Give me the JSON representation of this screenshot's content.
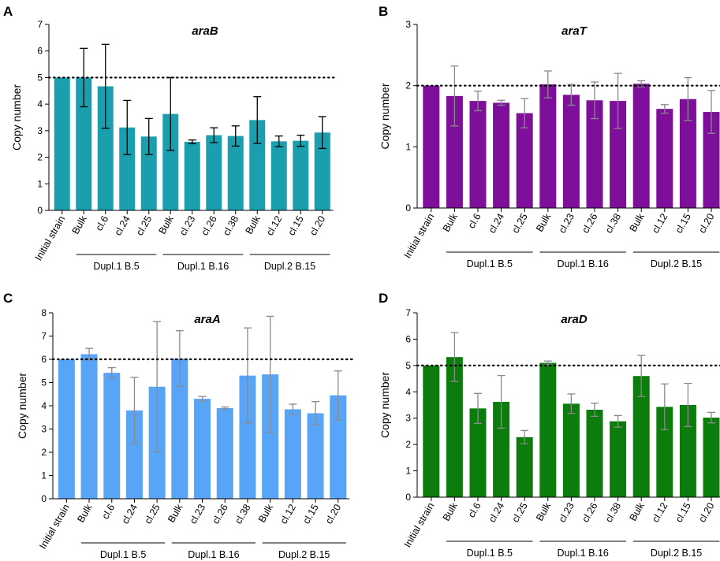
{
  "chart_data": [
    {
      "panel": "A",
      "type": "bar",
      "title": "araB",
      "ylabel": "Copy number",
      "ylim": [
        0,
        7
      ],
      "yticks": [
        "0",
        "1",
        "2",
        "3",
        "4",
        "5",
        "6",
        "7"
      ],
      "reference_line": 5,
      "color": "#1b9fae",
      "error_color": "#000000",
      "categories": [
        "Initial strain",
        "Bulk",
        "cl.6",
        "cl.24",
        "cl.25",
        "Bulk",
        "cl.23",
        "cl.26",
        "cl.38",
        "Bulk",
        "cl.12",
        "cl.15",
        "cl.20"
      ],
      "values": [
        5.0,
        5.0,
        4.67,
        3.12,
        2.78,
        3.63,
        2.58,
        2.83,
        2.8,
        3.4,
        2.6,
        2.62,
        2.93
      ],
      "errors": [
        0,
        1.1,
        1.58,
        1.02,
        0.68,
        1.37,
        0.07,
        0.28,
        0.38,
        0.88,
        0.2,
        0.21,
        0.6
      ],
      "groups": [
        {
          "label": "Dupl.1 B.5",
          "start": 1,
          "end": 4
        },
        {
          "label": "Dupl.1 B.16",
          "start": 5,
          "end": 8
        },
        {
          "label": "Dupl.2 B.15",
          "start": 9,
          "end": 12
        }
      ]
    },
    {
      "panel": "B",
      "type": "bar",
      "title": "araT",
      "ylabel": "Copy number",
      "ylim": [
        0,
        3
      ],
      "yticks": [
        "0",
        "1",
        "2",
        "3"
      ],
      "reference_line": 2,
      "color": "#7d0f9a",
      "error_color": "#8a8a8a",
      "categories": [
        "Initial strain",
        "Bulk",
        "cl.6",
        "cl.24",
        "cl.25",
        "Bulk",
        "cl.23",
        "cl.26",
        "cl.38",
        "Bulk",
        "cl.12",
        "cl.15",
        "cl.20"
      ],
      "values": [
        2.0,
        1.83,
        1.75,
        1.72,
        1.55,
        2.02,
        1.85,
        1.76,
        1.75,
        2.03,
        1.62,
        1.78,
        1.57
      ],
      "errors": [
        0,
        0.49,
        0.16,
        0.04,
        0.24,
        0.22,
        0.17,
        0.3,
        0.45,
        0.05,
        0.07,
        0.35,
        0.35
      ],
      "groups": [
        {
          "label": "Dupl.1 B.5",
          "start": 1,
          "end": 4
        },
        {
          "label": "Dupl.1 B.16",
          "start": 5,
          "end": 8
        },
        {
          "label": "Dupl.2 B.15",
          "start": 9,
          "end": 12
        }
      ]
    },
    {
      "panel": "C",
      "type": "bar",
      "title": "araA",
      "ylabel": "Copy number",
      "ylim": [
        0,
        8
      ],
      "yticks": [
        "0",
        "1",
        "2",
        "3",
        "4",
        "5",
        "6",
        "7",
        "8"
      ],
      "reference_line": 6,
      "color": "#58a5f8",
      "error_color": "#8a8a8a",
      "categories": [
        "Initial strain",
        "Bulk",
        "cl.6",
        "cl.24",
        "cl.25",
        "Bulk",
        "cl.23",
        "cl.26",
        "cl.38",
        "Bulk",
        "cl.12",
        "cl.15",
        "cl.20"
      ],
      "values": [
        6.0,
        6.22,
        5.42,
        3.8,
        4.82,
        6.03,
        4.3,
        3.9,
        5.3,
        5.35,
        3.85,
        3.68,
        4.45
      ],
      "errors": [
        0,
        0.25,
        0.22,
        1.42,
        2.8,
        1.2,
        0.1,
        0.05,
        2.05,
        2.5,
        0.22,
        0.5,
        1.05
      ],
      "groups": [
        {
          "label": "Dupl.1 B.5",
          "start": 1,
          "end": 4
        },
        {
          "label": "Dupl.1 B.16",
          "start": 5,
          "end": 8
        },
        {
          "label": "Dupl.2 B.15",
          "start": 9,
          "end": 12
        }
      ]
    },
    {
      "panel": "D",
      "type": "bar",
      "title": "araD",
      "ylabel": "Copy number",
      "ylim": [
        0,
        7
      ],
      "yticks": [
        "0",
        "1",
        "2",
        "3",
        "4",
        "5",
        "6",
        "7"
      ],
      "reference_line": 5,
      "color": "#0c7d0c",
      "error_color": "#8a8a8a",
      "categories": [
        "Initial strain",
        "Bulk",
        "cl.6",
        "cl.24",
        "cl.25",
        "Bulk",
        "cl.23",
        "cl.26",
        "cl.38",
        "Bulk",
        "cl.12",
        "cl.15",
        "cl.20"
      ],
      "values": [
        5.0,
        5.32,
        3.37,
        3.62,
        2.28,
        5.1,
        3.55,
        3.32,
        2.88,
        4.6,
        3.43,
        3.5,
        3.02
      ],
      "errors": [
        0,
        0.93,
        0.57,
        1.0,
        0.25,
        0.07,
        0.37,
        0.25,
        0.22,
        0.78,
        0.87,
        0.82,
        0.2
      ],
      "groups": [
        {
          "label": "Dupl.1 B.5",
          "start": 1,
          "end": 4
        },
        {
          "label": "Dupl.1 B.16",
          "start": 5,
          "end": 8
        },
        {
          "label": "Dupl.2 B.15",
          "start": 9,
          "end": 12
        }
      ]
    }
  ]
}
